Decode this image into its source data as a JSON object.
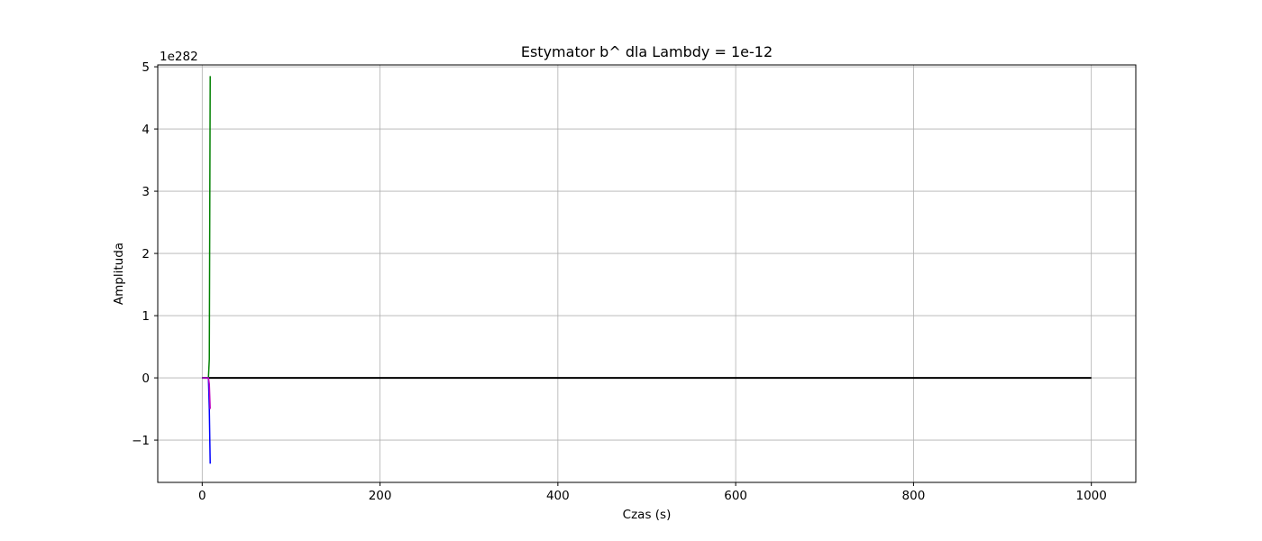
{
  "chart_data": {
    "type": "line",
    "title": "Estymator b^ dla Lambdy = 1e-12",
    "xlabel": "Czas (s)",
    "ylabel": "Amplituda",
    "y_offset_label": "1e282",
    "xlim": [
      -50,
      1050
    ],
    "ylim": [
      -1.68,
      5.03
    ],
    "x_ticks": [
      0,
      200,
      400,
      600,
      800,
      1000
    ],
    "x_tick_labels": [
      "0",
      "200",
      "400",
      "600",
      "800",
      "1000"
    ],
    "y_ticks": [
      -1,
      0,
      1,
      2,
      3,
      4,
      5
    ],
    "y_tick_labels": [
      "−1",
      "0",
      "1",
      "2",
      "3",
      "4",
      "5"
    ],
    "grid": true,
    "series": [
      {
        "color": "#000000",
        "x": [
          0,
          1000
        ],
        "y": [
          0,
          0
        ]
      },
      {
        "color": "#008000",
        "x": [
          0,
          7,
          8,
          9
        ],
        "y": [
          0,
          0,
          0.3,
          4.85
        ]
      },
      {
        "color": "#0000ff",
        "x": [
          0,
          7,
          8,
          9
        ],
        "y": [
          0,
          0,
          -0.5,
          -1.38
        ]
      },
      {
        "color": "#bf00bf",
        "x": [
          0,
          7,
          8,
          9
        ],
        "y": [
          0,
          0,
          -0.1,
          -0.5
        ]
      }
    ]
  }
}
